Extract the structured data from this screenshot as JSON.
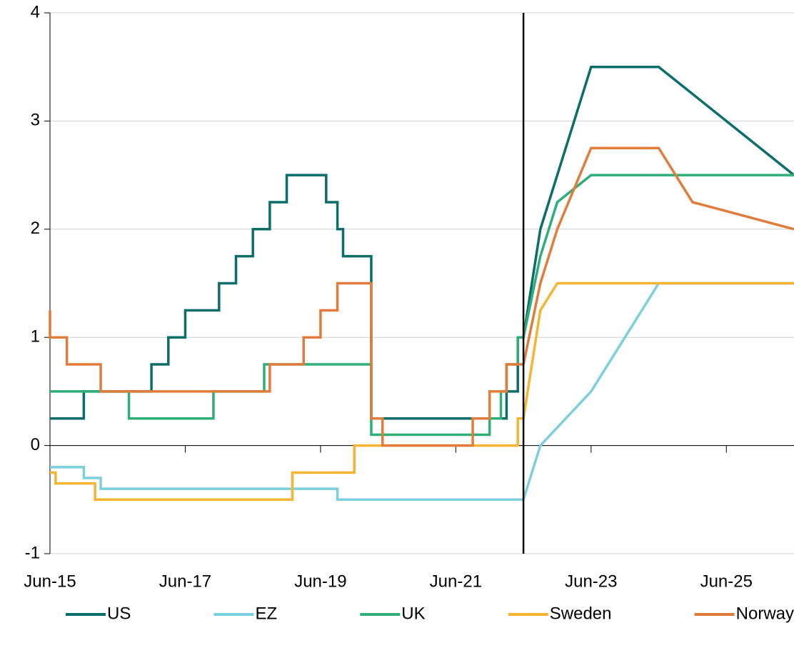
{
  "chart_data": {
    "type": "line",
    "xlim": [
      "2015-06",
      "2026-06"
    ],
    "xticks": [
      {
        "value": "2015-06",
        "label": "Jun-15"
      },
      {
        "value": "2017-06",
        "label": "Jun-17"
      },
      {
        "value": "2019-06",
        "label": "Jun-19"
      },
      {
        "value": "2021-06",
        "label": "Jun-21"
      },
      {
        "value": "2023-06",
        "label": "Jun-23"
      },
      {
        "value": "2025-06",
        "label": "Jun-25"
      }
    ],
    "ylim": [
      -1,
      4
    ],
    "yticks": [
      -1,
      0,
      1,
      2,
      3,
      4
    ],
    "grid": true,
    "vlines": [
      "2022-06"
    ],
    "legend": "bottom",
    "series": [
      {
        "name": "US",
        "color": "#0b6e69",
        "x": [
          "2015-06",
          "2015-12",
          "2015-12",
          "2016-12",
          "2016-12",
          "2017-03",
          "2017-03",
          "2017-06",
          "2017-06",
          "2017-12",
          "2017-12",
          "2018-03",
          "2018-03",
          "2018-06",
          "2018-06",
          "2018-09",
          "2018-09",
          "2018-12",
          "2018-12",
          "2019-07",
          "2019-07",
          "2019-09",
          "2019-09",
          "2019-10",
          "2019-10",
          "2020-03",
          "2020-03",
          "2020-03",
          "2022-03",
          "2022-03",
          "2022-05",
          "2022-05",
          "2022-06",
          "2022-09",
          "2023-06",
          "2024-06",
          "2026-06"
        ],
        "values": [
          0.25,
          0.25,
          0.5,
          0.5,
          0.75,
          0.75,
          1.0,
          1.0,
          1.25,
          1.25,
          1.5,
          1.5,
          1.75,
          1.75,
          2.0,
          2.0,
          2.25,
          2.25,
          2.5,
          2.5,
          2.25,
          2.25,
          2.0,
          2.0,
          1.75,
          1.75,
          1.25,
          0.25,
          0.25,
          0.5,
          0.5,
          1.0,
          1.0,
          2.0,
          3.5,
          3.5,
          2.5
        ]
      },
      {
        "name": "EZ",
        "color": "#7ccfdc",
        "x": [
          "2015-06",
          "2015-12",
          "2015-12",
          "2016-03",
          "2016-03",
          "2019-09",
          "2019-09",
          "2022-06",
          "2022-09",
          "2023-06",
          "2024-06",
          "2026-06"
        ],
        "values": [
          -0.2,
          -0.2,
          -0.3,
          -0.3,
          -0.4,
          -0.4,
          -0.5,
          -0.5,
          0,
          0.5,
          1.5,
          1.5
        ]
      },
      {
        "name": "UK",
        "color": "#2fae7a",
        "x": [
          "2015-06",
          "2016-08",
          "2016-08",
          "2017-11",
          "2017-11",
          "2018-08",
          "2018-08",
          "2020-03",
          "2020-03",
          "2021-12",
          "2021-12",
          "2022-02",
          "2022-02",
          "2022-03",
          "2022-03",
          "2022-05",
          "2022-05",
          "2022-06",
          "2022-09",
          "2022-12",
          "2023-06",
          "2026-06"
        ],
        "values": [
          0.5,
          0.5,
          0.25,
          0.25,
          0.5,
          0.5,
          0.75,
          0.75,
          0.1,
          0.1,
          0.25,
          0.25,
          0.5,
          0.5,
          0.75,
          0.75,
          1.0,
          1.0,
          1.75,
          2.25,
          2.5,
          2.5
        ]
      },
      {
        "name": "Sweden",
        "color": "#f5b432",
        "x": [
          "2015-06",
          "2015-07",
          "2015-07",
          "2016-02",
          "2016-02",
          "2019-01",
          "2019-01",
          "2019-12",
          "2019-12",
          "2022-05",
          "2022-05",
          "2022-06",
          "2022-09",
          "2022-12",
          "2026-06"
        ],
        "values": [
          -0.25,
          -0.25,
          -0.35,
          -0.35,
          -0.5,
          -0.5,
          -0.25,
          -0.25,
          0,
          0,
          0.25,
          0.25,
          1.25,
          1.5,
          1.5
        ]
      },
      {
        "name": "Norway",
        "color": "#e07d3c",
        "x": [
          "2015-06",
          "2015-06",
          "2015-09",
          "2015-09",
          "2016-03",
          "2016-03",
          "2018-09",
          "2018-09",
          "2019-03",
          "2019-03",
          "2019-06",
          "2019-06",
          "2019-09",
          "2019-09",
          "2020-03",
          "2020-03",
          "2020-03",
          "2020-05",
          "2020-05",
          "2021-09",
          "2021-09",
          "2021-12",
          "2021-12",
          "2022-03",
          "2022-03",
          "2022-06",
          "2022-09",
          "2022-12",
          "2023-06",
          "2024-06",
          "2024-12",
          "2026-06"
        ],
        "values": [
          1.25,
          1.0,
          1.0,
          0.75,
          0.75,
          0.5,
          0.5,
          0.75,
          0.75,
          1.0,
          1.0,
          1.25,
          1.25,
          1.5,
          1.5,
          1.0,
          0.25,
          0.25,
          0,
          0,
          0.25,
          0.25,
          0.5,
          0.5,
          0.75,
          0.75,
          1.5,
          2.0,
          2.75,
          2.75,
          2.25,
          2.0
        ]
      }
    ]
  }
}
